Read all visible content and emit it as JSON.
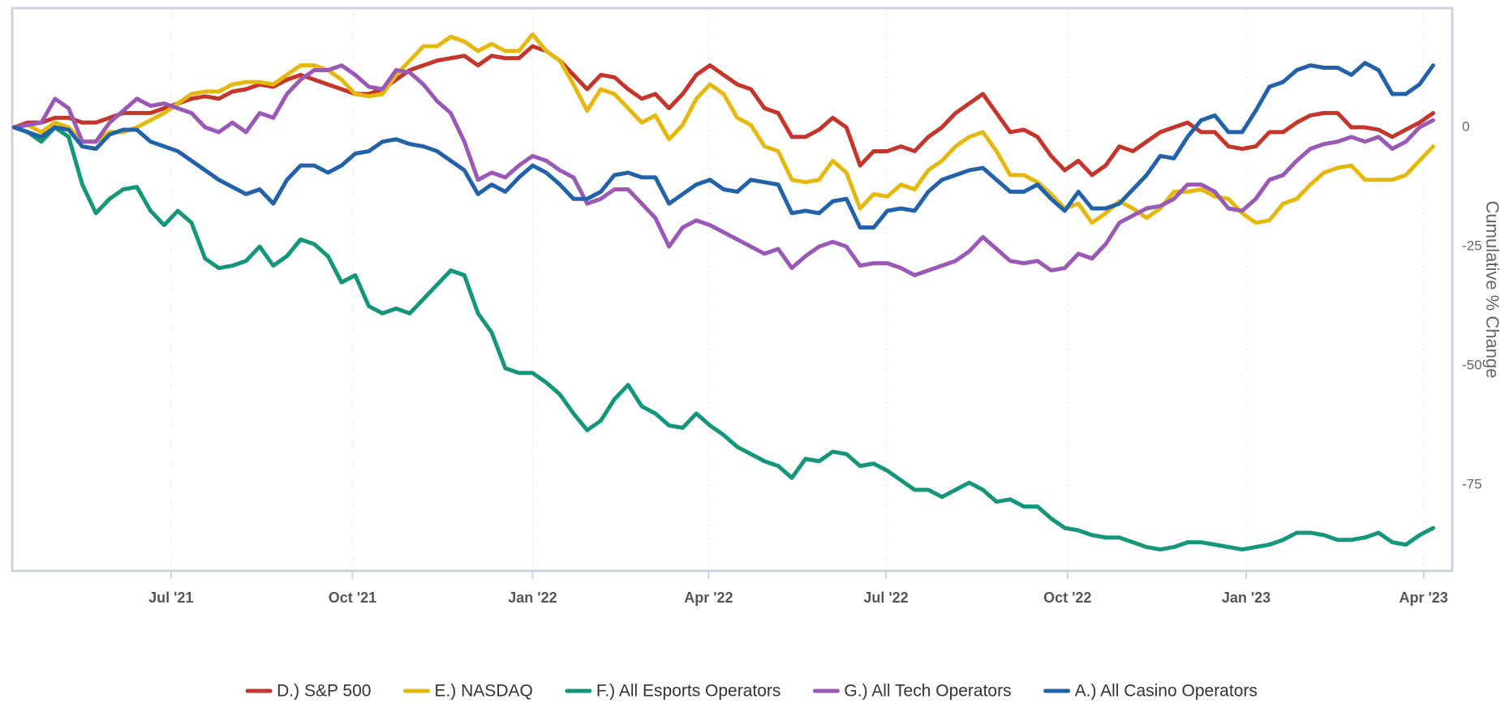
{
  "chart_data": {
    "type": "line",
    "y_axis_label": "Cumulative % Change",
    "y_axis_side": "right",
    "x": [
      0,
      1,
      2,
      3,
      4,
      5,
      6,
      7,
      8,
      9,
      10,
      11,
      12,
      13,
      14,
      15,
      16,
      17,
      18,
      19,
      20,
      21,
      22,
      23,
      24,
      25,
      26,
      27,
      28,
      29,
      30,
      31,
      32,
      33,
      34,
      35,
      36,
      37,
      38,
      39,
      40,
      41,
      42,
      43,
      44,
      45,
      46,
      47,
      48,
      49,
      50,
      51,
      52,
      53,
      54,
      55,
      56,
      57,
      58,
      59,
      60,
      61,
      62,
      63,
      64,
      65,
      66,
      67,
      68,
      69,
      70,
      71,
      72,
      73,
      74,
      75,
      76,
      77,
      78,
      79,
      80,
      81,
      82,
      83,
      84,
      85,
      86,
      87,
      88,
      89,
      90,
      91,
      92,
      93,
      94,
      95,
      96,
      97,
      98,
      99,
      100,
      101,
      102,
      103,
      104
    ],
    "xlim": [
      -0.14,
      105.4
    ],
    "xticks": [
      {
        "value": 11.5,
        "label": "Jul '21"
      },
      {
        "value": 24.8,
        "label": "Oct '21"
      },
      {
        "value": 38.0,
        "label": "Jan '22"
      },
      {
        "value": 50.9,
        "label": "Apr '22"
      },
      {
        "value": 63.9,
        "label": "Jul '22"
      },
      {
        "value": 77.2,
        "label": "Oct '22"
      },
      {
        "value": 90.3,
        "label": "Jan '23"
      },
      {
        "value": 103.3,
        "label": "Apr '23"
      }
    ],
    "ylim": [
      -93,
      25
    ],
    "yticks": [
      0,
      -25,
      -50,
      -75
    ],
    "grid": true,
    "legend": "bottom",
    "series": [
      {
        "name": "D.) S&P 500",
        "color": "#c4352b",
        "values": [
          0,
          1,
          1,
          2,
          2,
          1,
          1,
          2,
          3,
          3,
          3,
          4,
          5,
          6,
          6.5,
          6,
          7.5,
          8,
          9,
          8.5,
          10,
          11,
          10,
          9,
          8,
          7,
          7,
          8,
          10,
          12,
          13,
          14,
          14.5,
          15,
          13,
          15,
          14.5,
          14.5,
          17,
          16,
          14,
          11,
          8,
          11,
          10.5,
          8,
          6,
          7,
          4,
          7,
          11,
          13,
          11,
          9,
          8,
          4,
          3,
          -2,
          -2,
          -0.5,
          2,
          0,
          -8,
          -5,
          -5,
          -4,
          -5,
          -2,
          0,
          3,
          5,
          7,
          3,
          -1,
          -0.5,
          -2,
          -6,
          -9,
          -7,
          -10,
          -8,
          -4,
          -5,
          -3,
          -1,
          0,
          1,
          -1,
          -1,
          -4,
          -4.5,
          -4,
          -1,
          -1,
          1,
          2.5,
          3,
          3,
          0,
          0,
          -0.5,
          -2,
          -0.5,
          1,
          3
        ]
      },
      {
        "name": "E.) NASDAQ",
        "color": "#e4b80c",
        "values": [
          0,
          0.5,
          -1,
          1,
          0,
          -3,
          -3,
          -1,
          -1,
          0,
          1.5,
          3,
          5,
          7,
          7.5,
          7.5,
          9,
          9.5,
          9.5,
          9,
          11,
          13,
          13,
          12,
          10,
          7,
          6.5,
          7,
          11,
          14,
          17,
          17,
          19,
          18,
          16,
          17.5,
          16,
          16,
          19.5,
          16,
          14,
          9,
          3.5,
          8,
          7,
          4,
          1,
          2.5,
          -2.5,
          0.5,
          6,
          9,
          7,
          2,
          0.5,
          -4,
          -5,
          -11,
          -11.5,
          -11,
          -7,
          -9.5,
          -17,
          -14,
          -14.5,
          -12,
          -13,
          -9,
          -7,
          -4,
          -2,
          -1,
          -5,
          -10,
          -10,
          -11.5,
          -14,
          -17,
          -16,
          -20,
          -18,
          -15.5,
          -17,
          -19,
          -17,
          -13.5,
          -13.5,
          -13,
          -14.5,
          -15,
          -18,
          -20,
          -19.5,
          -16,
          -15,
          -12,
          -9.5,
          -8.5,
          -8,
          -11,
          -11,
          -11,
          -10,
          -7,
          -4
        ]
      },
      {
        "name": "F.) All Esports Operators",
        "color": "#15967b",
        "values": [
          0,
          -1,
          -3,
          0,
          -2,
          -12,
          -18,
          -15,
          -13,
          -12.5,
          -17.5,
          -20.5,
          -17.5,
          -20,
          -27.5,
          -29.5,
          -29,
          -28,
          -25,
          -29,
          -27,
          -23.5,
          -24.5,
          -27,
          -32.5,
          -31,
          -37.5,
          -39,
          -38,
          -39,
          -36,
          -33,
          -30,
          -31,
          -39,
          -43,
          -50.5,
          -51.5,
          -51.5,
          -53.5,
          -56,
          -60,
          -63.5,
          -61.5,
          -57,
          -54,
          -58.5,
          -60,
          -62.5,
          -63,
          -60,
          -62.5,
          -64.5,
          -67,
          -68.5,
          -70,
          -71,
          -73.5,
          -69.5,
          -70,
          -68,
          -68.5,
          -71,
          -70.5,
          -72,
          -74,
          -76,
          -76,
          -77.5,
          -76,
          -74.5,
          -76,
          -78.5,
          -78,
          -79.5,
          -79.5,
          -82,
          -84,
          -84.5,
          -85.5,
          -86,
          -86,
          -87,
          -88,
          -88.5,
          -88,
          -87,
          -87,
          -87.5,
          -88,
          -88.5,
          -88,
          -87.5,
          -86.5,
          -85,
          -85,
          -85.5,
          -86.5,
          -86.5,
          -86,
          -85,
          -87,
          -87.5,
          -85.5,
          -84
        ]
      },
      {
        "name": "G.) All Tech Operators",
        "color": "#9b59b6",
        "values": [
          0,
          0.5,
          1,
          6,
          4,
          -3,
          -3,
          1,
          3.5,
          6,
          4.5,
          5,
          4,
          3,
          0,
          -1,
          1,
          -1,
          3,
          2,
          7,
          10,
          12,
          12,
          13,
          11,
          8.5,
          8,
          12,
          11.5,
          9,
          5.5,
          3,
          -3,
          -11,
          -9.5,
          -10.5,
          -8,
          -6,
          -7,
          -9,
          -10.5,
          -16,
          -15,
          -13,
          -13,
          -16,
          -19,
          -25,
          -21,
          -19.5,
          -20.5,
          -22,
          -23.5,
          -25,
          -26.5,
          -25.5,
          -29.5,
          -27,
          -25,
          -24,
          -25,
          -29,
          -28.5,
          -28.5,
          -29.5,
          -31,
          -30,
          -29,
          -28,
          -26,
          -23,
          -25.5,
          -28,
          -28.5,
          -28,
          -30,
          -29.5,
          -26.5,
          -27.5,
          -24.5,
          -20,
          -18.5,
          -17,
          -16.5,
          -15,
          -12,
          -12,
          -13.5,
          -17,
          -17.5,
          -15,
          -11,
          -10,
          -7,
          -4.5,
          -3.5,
          -3,
          -2,
          -3,
          -2,
          -4.5,
          -3,
          0,
          1.5
        ]
      },
      {
        "name": "A.) All Casino Operators",
        "color": "#2262a8",
        "values": [
          0,
          -1,
          -2,
          0,
          -0.5,
          -4,
          -4.5,
          -1.5,
          -0.5,
          -0.5,
          -3,
          -4,
          -5,
          -7,
          -9,
          -11,
          -12.5,
          -14,
          -13,
          -16,
          -11,
          -8,
          -8,
          -9.5,
          -8,
          -5.5,
          -5,
          -3,
          -2.5,
          -3.5,
          -4,
          -5,
          -7,
          -9,
          -14,
          -12,
          -13.5,
          -10.5,
          -8,
          -9.5,
          -12,
          -15,
          -15,
          -13.5,
          -10,
          -9.5,
          -10.5,
          -10.5,
          -16,
          -14,
          -12,
          -11,
          -13,
          -13.5,
          -11,
          -11.5,
          -12,
          -18,
          -17.5,
          -18,
          -15.5,
          -15,
          -21,
          -21,
          -17.5,
          -17,
          -17.5,
          -13.5,
          -11,
          -10,
          -9,
          -8.5,
          -11,
          -13.5,
          -13.5,
          -12,
          -15,
          -17.5,
          -13.5,
          -17,
          -17,
          -16,
          -13,
          -10,
          -6,
          -6.5,
          -2,
          1.5,
          2.5,
          -1,
          -1,
          3.5,
          8.5,
          9.5,
          12,
          13,
          12.5,
          12.5,
          11,
          13.5,
          12,
          7,
          7,
          9,
          13
        ]
      }
    ]
  }
}
